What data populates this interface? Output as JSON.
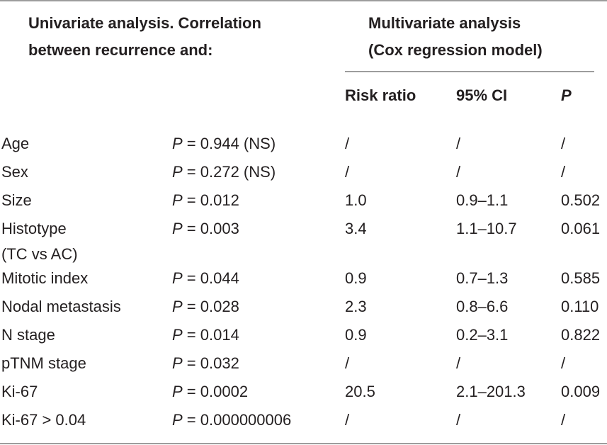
{
  "header": {
    "univariate_line1": "Univariate analysis. Correlation",
    "univariate_line2": "between recurrence and:",
    "multivariate_line1": "Multivariate analysis",
    "multivariate_line2": "(Cox regression model)",
    "col_risk_ratio": "Risk ratio",
    "col_ci": "95% CI",
    "col_p": "P"
  },
  "rows": [
    {
      "variable": "Age",
      "p_label": "P",
      "p_value": " = 0.944 (NS)",
      "risk_ratio": "/",
      "ci": "/",
      "p": "/"
    },
    {
      "variable": "Sex",
      "p_label": "P",
      "p_value": " = 0.272 (NS)",
      "risk_ratio": "/",
      "ci": "/",
      "p": "/"
    },
    {
      "variable": "Size",
      "p_label": "P",
      "p_value": " = 0.012",
      "risk_ratio": "1.0",
      "ci": "0.9–1.1",
      "p": "0.502"
    },
    {
      "variable": "Histotype",
      "variable_cont": "(TC vs AC)",
      "p_label": "P",
      "p_value": " = 0.003",
      "risk_ratio": "3.4",
      "ci": "1.1–10.7",
      "p": "0.061"
    },
    {
      "variable": "Mitotic index",
      "p_label": "P",
      "p_value": " = 0.044",
      "risk_ratio": "0.9",
      "ci": "0.7–1.3",
      "p": "0.585"
    },
    {
      "variable": "Nodal metastasis",
      "p_label": "P",
      "p_value": " = 0.028",
      "risk_ratio": "2.3",
      "ci": "0.8–6.6",
      "p": "0.110"
    },
    {
      "variable": "N stage",
      "p_label": "P",
      "p_value": " = 0.014",
      "risk_ratio": "0.9",
      "ci": "0.2–3.1",
      "p": "0.822"
    },
    {
      "variable": "pTNM stage",
      "p_label": "P",
      "p_value": " = 0.032",
      "risk_ratio": "/",
      "ci": "/",
      "p": "/"
    },
    {
      "variable": "Ki-67",
      "p_label": "P",
      "p_value": " = 0.0002",
      "risk_ratio": "20.5",
      "ci": "2.1–201.3",
      "p": "0.009"
    },
    {
      "variable": "Ki-67 > 0.04",
      "p_label": "P",
      "p_value": " = 0.000000006",
      "risk_ratio": "/",
      "ci": "/",
      "p": "/"
    }
  ]
}
